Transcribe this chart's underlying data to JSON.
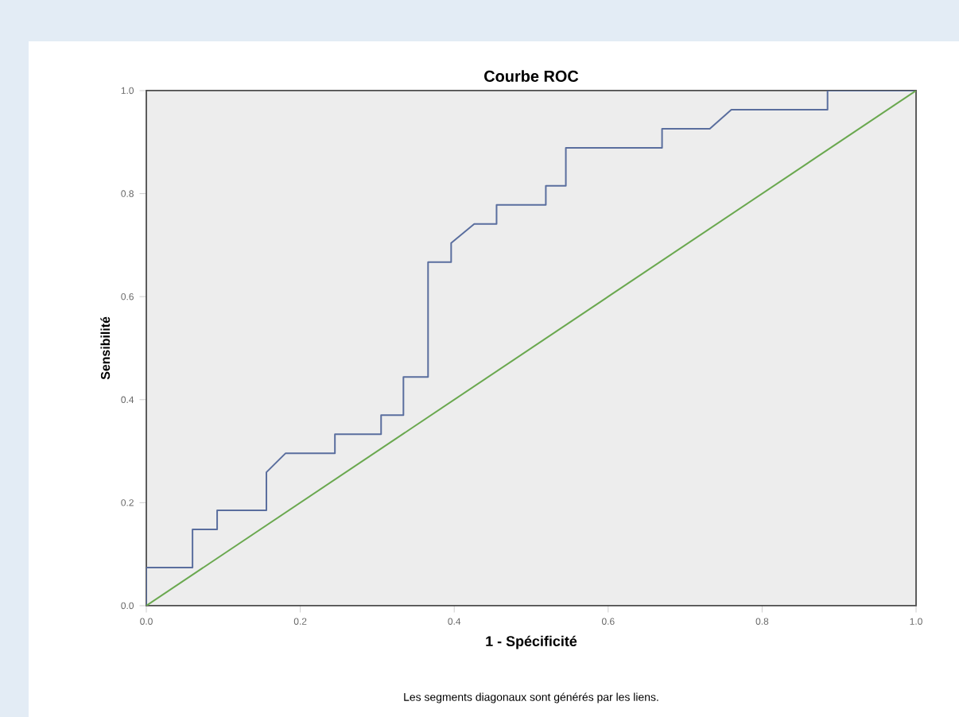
{
  "chart_data": {
    "type": "line",
    "title": "Courbe ROC",
    "xlabel": "1 - Spécificité",
    "ylabel": "Sensibilité",
    "annotations": [
      "Les segments diagonaux sont générés par les liens."
    ],
    "xlim": [
      0,
      1
    ],
    "ylim": [
      0,
      1
    ],
    "xticks": [
      {
        "value": 0,
        "label": "0.0"
      },
      {
        "value": 0.2,
        "label": "0.2"
      },
      {
        "value": 0.4,
        "label": "0.4"
      },
      {
        "value": 0.6,
        "label": "0.6"
      },
      {
        "value": 0.8,
        "label": "0.8"
      },
      {
        "value": 1,
        "label": "1.0"
      }
    ],
    "yticks": [
      {
        "value": 0,
        "label": "0.0"
      },
      {
        "value": 0.2,
        "label": "0.2"
      },
      {
        "value": 0.4,
        "label": "0.4"
      },
      {
        "value": 0.6,
        "label": "0.6"
      },
      {
        "value": 0.8,
        "label": "0.8"
      },
      {
        "value": 1,
        "label": "1.0"
      }
    ],
    "grid": false,
    "series": [
      {
        "color": "#5a6e9e",
        "x": [
          0,
          0,
          0.06,
          0.06,
          0.092,
          0.092,
          0.156,
          0.156,
          0.181,
          0.245,
          0.245,
          0.305,
          0.305,
          0.334,
          0.334,
          0.366,
          0.366,
          0.396,
          0.396,
          0.426,
          0.455,
          0.455,
          0.519,
          0.519,
          0.545,
          0.545,
          0.67,
          0.67,
          0.732,
          0.76,
          0.885,
          0.885,
          1
        ],
        "values": [
          0,
          0.074,
          0.074,
          0.148,
          0.148,
          0.185,
          0.185,
          0.259,
          0.296,
          0.296,
          0.333,
          0.333,
          0.37,
          0.37,
          0.444,
          0.444,
          0.667,
          0.667,
          0.704,
          0.741,
          0.741,
          0.778,
          0.778,
          0.815,
          0.815,
          0.889,
          0.889,
          0.926,
          0.926,
          0.963,
          0.963,
          1,
          1
        ]
      },
      {
        "color": "#6aa84f",
        "x": [
          0,
          1
        ],
        "values": [
          0,
          1
        ]
      }
    ]
  }
}
